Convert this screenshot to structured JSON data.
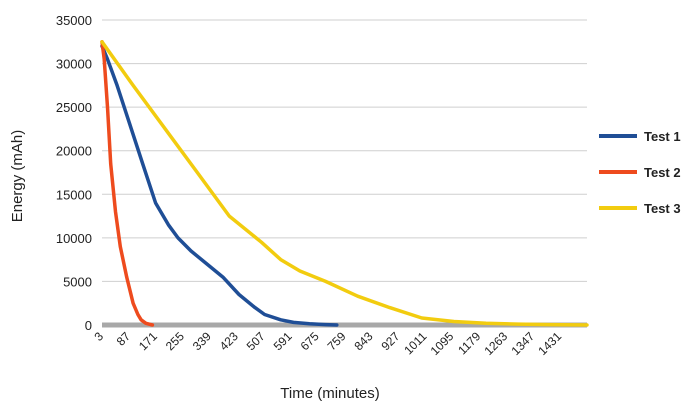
{
  "chart_data": {
    "type": "line",
    "title": "",
    "xlabel": "Time (minutes)",
    "ylabel": "Energy (mAh)",
    "xlim": [
      3,
      1515
    ],
    "ylim": [
      0,
      35000
    ],
    "y_ticks": [
      0,
      5000,
      10000,
      15000,
      20000,
      25000,
      30000,
      35000
    ],
    "y_tick_labels": [
      "0",
      "5000",
      "10000",
      "15000",
      "20000",
      "25000",
      "30000",
      "35000"
    ],
    "x_ticks": [
      3,
      87,
      171,
      255,
      339,
      423,
      507,
      591,
      675,
      759,
      843,
      927,
      1011,
      1095,
      1179,
      1263,
      1347,
      1431
    ],
    "x_tick_labels": [
      "3",
      "87",
      "171",
      "255",
      "339",
      "423",
      "507",
      "591",
      "675",
      "759",
      "843",
      "927",
      "1011",
      "1095",
      "1179",
      "1263",
      "1347",
      "1431"
    ],
    "grid": "horizontal",
    "legend_position": "right",
    "series": [
      {
        "name": "Test 1",
        "color": "#1f4e96",
        "x": [
          3,
          20,
          50,
          90,
          130,
          170,
          210,
          240,
          280,
          330,
          380,
          430,
          480,
          510,
          560,
          600,
          650,
          700,
          735
        ],
        "y": [
          32000,
          30500,
          27500,
          23000,
          18500,
          14000,
          11500,
          10000,
          8500,
          7000,
          5500,
          3500,
          2000,
          1200,
          600,
          300,
          150,
          50,
          0
        ]
      },
      {
        "name": "Test 2",
        "color": "#ee4b1e",
        "x": [
          3,
          10,
          20,
          30,
          45,
          60,
          80,
          100,
          115,
          125,
          140,
          160
        ],
        "y": [
          32500,
          30500,
          25000,
          18500,
          13000,
          9000,
          5500,
          2500,
          1200,
          600,
          200,
          0
        ]
      },
      {
        "name": "Test 3",
        "color": "#f2cc0f",
        "x": [
          3,
          100,
          200,
          300,
          400,
          500,
          560,
          620,
          700,
          800,
          900,
          1000,
          1100,
          1200,
          1300,
          1400,
          1515
        ],
        "y": [
          32500,
          27500,
          22500,
          17500,
          12500,
          9500,
          7500,
          6200,
          5000,
          3300,
          2000,
          800,
          400,
          200,
          100,
          50,
          0
        ]
      }
    ]
  }
}
